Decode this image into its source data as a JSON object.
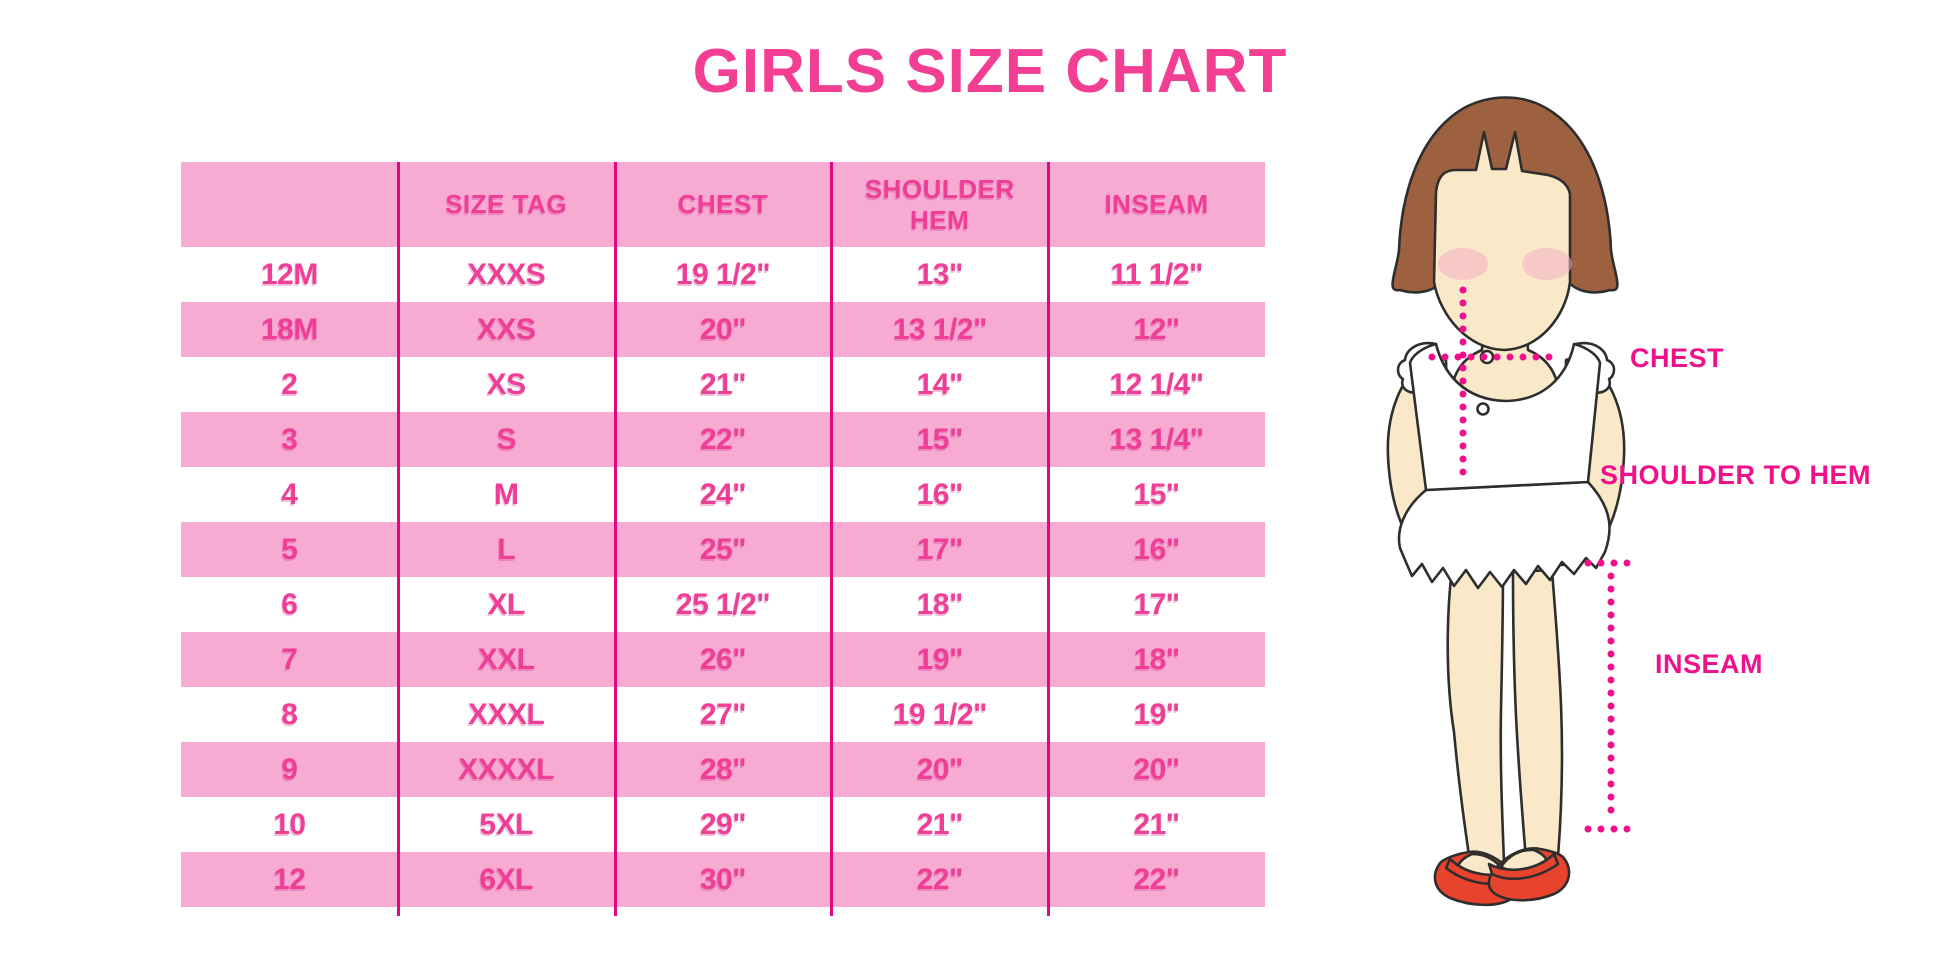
{
  "chart_data": {
    "type": "table",
    "title": "GIRLS SIZE CHART",
    "columns": [
      "",
      "SIZE TAG",
      "CHEST",
      "SHOULDER HEM",
      "INSEAM"
    ],
    "rows": [
      [
        "12M",
        "XXXS",
        "19 1/2\"",
        "13\"",
        "11 1/2\""
      ],
      [
        "18M",
        "XXS",
        "20\"",
        "13 1/2\"",
        "12\""
      ],
      [
        "2",
        "XS",
        "21\"",
        "14\"",
        "12 1/4\""
      ],
      [
        "3",
        "S",
        "22\"",
        "15\"",
        "13 1/4\""
      ],
      [
        "4",
        "M",
        "24\"",
        "16\"",
        "15\""
      ],
      [
        "5",
        "L",
        "25\"",
        "17\"",
        "16\""
      ],
      [
        "6",
        "XL",
        "25 1/2\"",
        "18\"",
        "17\""
      ],
      [
        "7",
        "XXL",
        "26\"",
        "19\"",
        "18\""
      ],
      [
        "8",
        "XXXL",
        "27\"",
        "19 1/2\"",
        "19\""
      ],
      [
        "9",
        "XXXXL",
        "28\"",
        "20\"",
        "20\""
      ],
      [
        "10",
        "5XL",
        "29\"",
        "21\"",
        "21\""
      ],
      [
        "12",
        "6XL",
        "30\"",
        "22\"",
        "22\""
      ]
    ],
    "row_striping": "white/pink alternating, header pink",
    "legend_position": "none",
    "grid": "vertical magenta column dividers only"
  },
  "figure": {
    "chest_label": "CHEST",
    "shoulder_to_hem_label": "SHOULDER TO HEM",
    "inseam_label": "INSEAM"
  },
  "colors": {
    "title_pink": "#F23E93",
    "row_pink": "#F8ABD2",
    "cell_text_pink": "#EF3E96",
    "divider_magenta": "#E2067F",
    "label_magenta": "#F1108C",
    "hair_brown": "#9E6140",
    "skin": "#FAE9C9",
    "blush": "#F2AEC2",
    "shoe_red": "#E8432C",
    "outline": "#2e2e2e"
  }
}
